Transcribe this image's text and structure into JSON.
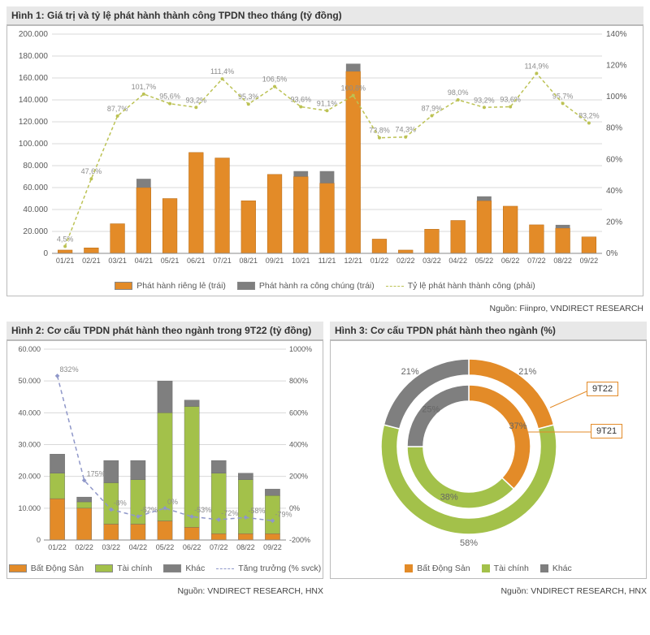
{
  "fig1": {
    "title": "Hình 1: Giá trị và tỷ lệ phát hành thành công TPDN theo tháng (tỷ đồng)",
    "source": "Nguồn: Fiinpro, VNDIRECT RESEARCH",
    "categories": [
      "01/21",
      "02/21",
      "03/21",
      "04/21",
      "05/21",
      "06/21",
      "07/21",
      "08/21",
      "09/21",
      "10/21",
      "11/21",
      "12/21",
      "01/22",
      "02/22",
      "03/22",
      "04/22",
      "05/22",
      "06/22",
      "07/22",
      "08/22",
      "09/22"
    ],
    "y1_max": 200000,
    "y1_step": 20000,
    "y2_max": 140,
    "y2_step": 20,
    "bar_private": [
      3000,
      5000,
      27000,
      60000,
      50000,
      92000,
      87000,
      48000,
      72000,
      70000,
      64000,
      166000,
      13000,
      3000,
      22000,
      30000,
      48000,
      43000,
      26000,
      23000,
      15000
    ],
    "bar_public": [
      0,
      0,
      0,
      8000,
      0,
      0,
      0,
      0,
      0,
      5000,
      11000,
      7000,
      0,
      0,
      0,
      0,
      4000,
      0,
      0,
      3000,
      0
    ],
    "pct": [
      4.5,
      47.6,
      87.7,
      101.7,
      95.6,
      93.2,
      111.4,
      95.3,
      106.5,
      93.6,
      91.1,
      100.8,
      73.8,
      74.3,
      87.9,
      98.0,
      93.2,
      93.6,
      114.9,
      95.7,
      83.2
    ],
    "pct_labels": [
      "4,5%",
      "47,6%",
      "87,7%",
      "101,7%",
      "95,6%",
      "93,2%",
      "111,4%",
      "95,3%",
      "106,5%",
      "93,6%",
      "91,1%",
      "100,8%",
      "73,8%",
      "74,3%",
      "87,9%",
      "98,0%",
      "93,2%",
      "93,6%",
      "114,9%",
      "95,7%",
      "83,2%"
    ],
    "colors": {
      "private": "#e38b28",
      "public": "#7f7f7f",
      "pct_line": "#bcc254",
      "grid": "#d9d9d9",
      "axis_text": "#595959",
      "label_text": "#8c8c8c"
    },
    "legend": {
      "private": "Phát hành riêng lẻ (trái)",
      "public": "Phát hành ra công chúng (trái)",
      "pct": "Tỷ lệ phát hành thành công (phải)"
    }
  },
  "fig2": {
    "title": "Hình 2: Cơ cấu TPDN phát hành theo ngành trong 9T22 (tỷ đồng)",
    "source": "Nguồn: VNDIRECT RESEARCH, HNX",
    "categories": [
      "01/22",
      "02/22",
      "03/22",
      "04/22",
      "05/22",
      "06/22",
      "07/22",
      "08/22",
      "09/22"
    ],
    "y1_max": 60000,
    "y1_step": 10000,
    "y2_min": -200,
    "y2_max": 1000,
    "y2_step": 200,
    "stack_bds": [
      13000,
      10000,
      5000,
      5000,
      6000,
      4000,
      2000,
      2000,
      2000
    ],
    "stack_tc": [
      8000,
      2000,
      13000,
      14000,
      34000,
      38000,
      19000,
      17000,
      12000
    ],
    "stack_khac": [
      6000,
      1500,
      7000,
      6000,
      10000,
      2000,
      4000,
      2000,
      2000
    ],
    "growth": [
      832,
      175,
      -8,
      -52,
      0,
      -53,
      -72,
      -58,
      -79
    ],
    "growth_labels": [
      "832%",
      "175%",
      "-8%",
      "-52%",
      "0%",
      "-53%",
      "-72%",
      "-58%",
      "-79%"
    ],
    "colors": {
      "bds": "#e38b28",
      "tc": "#a3c14a",
      "khac": "#7f7f7f",
      "growth_line": "#8f97c9",
      "grid": "#d9d9d9"
    },
    "legend": {
      "bds": "Bất Động Sản",
      "tc": "Tài chính",
      "khac": "Khác",
      "growth": "Tăng trưởng (% svck)"
    }
  },
  "fig3": {
    "title": "Hình 3: Cơ cấu TPDN phát hành theo ngành (%)",
    "source": "Nguồn: VNDIRECT RESEARCH, HNX",
    "outer": {
      "label": "9T22",
      "bds": 21,
      "tc": 58,
      "khac": 21
    },
    "inner": {
      "label": "9T21",
      "bds": 37,
      "tc": 38,
      "khac": 25
    },
    "colors": {
      "bds": "#e38b28",
      "tc": "#a3c14a",
      "khac": "#7f7f7f"
    },
    "legend": {
      "bds": "Bất Động Sản",
      "tc": "Tài chính",
      "khac": "Khác"
    }
  }
}
